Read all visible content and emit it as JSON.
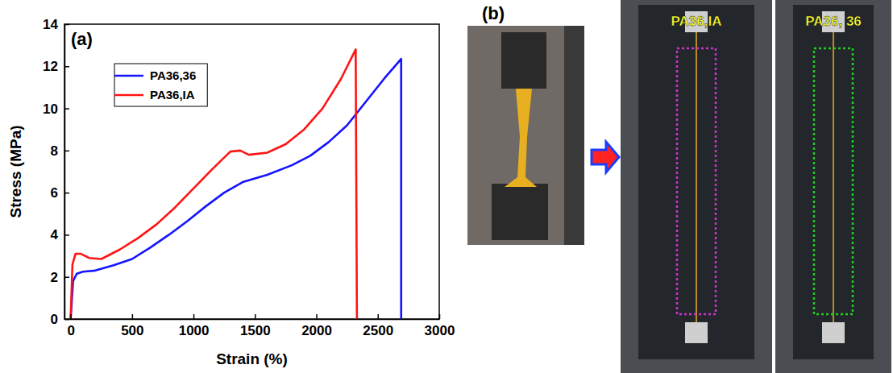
{
  "chart_data": {
    "type": "line",
    "annotations": [
      "(a)"
    ],
    "x_label": "Strain (%)",
    "y_label": "Stress (MPa)",
    "xlim": [
      -50,
      3000
    ],
    "ylim": [
      0,
      14
    ],
    "xticks": [
      0,
      500,
      1000,
      1500,
      2000,
      2500,
      3000
    ],
    "yticks": [
      0,
      2,
      4,
      6,
      8,
      10,
      12,
      14
    ],
    "legend": "upper left",
    "grid": false,
    "series": [
      {
        "name": "PA36,36",
        "color": "#1414ff",
        "x": [
          0,
          20,
          50,
          100,
          200,
          350,
          500,
          650,
          800,
          950,
          1100,
          1250,
          1400,
          1600,
          1800,
          1950,
          2100,
          2250,
          2400,
          2550,
          2690,
          2690
        ],
        "values": [
          0,
          1.8,
          2.15,
          2.25,
          2.3,
          2.55,
          2.85,
          3.4,
          4.0,
          4.65,
          5.35,
          6.0,
          6.5,
          6.85,
          7.3,
          7.75,
          8.4,
          9.2,
          10.3,
          11.4,
          12.35,
          0
        ]
      },
      {
        "name": "PA36,IA",
        "color": "#ff1414",
        "x": [
          0,
          15,
          40,
          80,
          150,
          250,
          400,
          550,
          700,
          850,
          1000,
          1150,
          1300,
          1380,
          1450,
          1600,
          1750,
          1900,
          2050,
          2200,
          2320,
          2330
        ],
        "values": [
          0,
          2.6,
          3.1,
          3.1,
          2.9,
          2.85,
          3.3,
          3.85,
          4.5,
          5.3,
          6.2,
          7.1,
          7.95,
          8.0,
          7.8,
          7.9,
          8.3,
          9.0,
          10.0,
          11.4,
          12.8,
          0
        ]
      }
    ]
  },
  "panel_b": {
    "label": "(b)",
    "photos": [
      {
        "label": "PA36,IA",
        "color": "#cc33cc"
      },
      {
        "label": "PA36, 36",
        "color": "#22cc22"
      }
    ]
  }
}
